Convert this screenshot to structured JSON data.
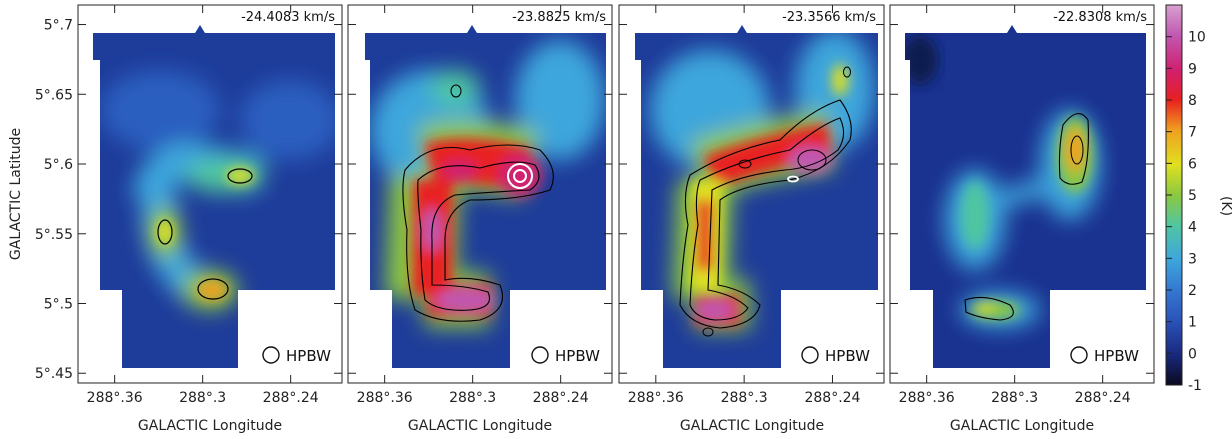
{
  "chart_data": {
    "type": "heatmap",
    "panels": [
      {
        "velocity_label": "-24.4083 km/s",
        "xlabel": "GALACTIC Longitude",
        "beam_label": "HPBW"
      },
      {
        "velocity_label": "-23.8825 km/s",
        "xlabel": "GALACTIC Longitude",
        "beam_label": "HPBW"
      },
      {
        "velocity_label": "-23.3566 km/s",
        "xlabel": "GALACTIC Longitude",
        "beam_label": "HPBW"
      },
      {
        "velocity_label": "-22.8308 km/s",
        "xlabel": "GALACTIC Longitude",
        "beam_label": "HPBW"
      }
    ],
    "x_ticks": [
      "288°.36",
      "288°.3",
      "288°.24"
    ],
    "x_tick_values": [
      288.36,
      288.3,
      288.24
    ],
    "xlim": [
      288.385,
      288.205
    ],
    "ylabel": "GALACTIC Latitude",
    "y_ticks": [
      "5°.7",
      "5°.65",
      "5°.6",
      "5°.55",
      "5°.5",
      "5°.45"
    ],
    "y_tick_values": [
      5.7,
      5.65,
      5.6,
      5.55,
      5.5,
      5.45
    ],
    "ylim": [
      5.443,
      5.714
    ],
    "colorbar": {
      "label": "(K)",
      "ticks": [
        "10",
        "9",
        "8",
        "7",
        "6",
        "5",
        "4",
        "3",
        "2",
        "1",
        "0",
        "-1"
      ],
      "tick_values": [
        10,
        9,
        8,
        7,
        6,
        5,
        4,
        3,
        2,
        1,
        0,
        -1
      ],
      "range": [
        -1,
        11
      ],
      "colormap": [
        "#0a0a1e",
        "#1a2a80",
        "#2a52b8",
        "#3ea6dc",
        "#50c6a0",
        "#8cc840",
        "#e0e020",
        "#f0a020",
        "#e82020",
        "#d02070",
        "#c058b0",
        "#d8a0d0"
      ]
    }
  }
}
